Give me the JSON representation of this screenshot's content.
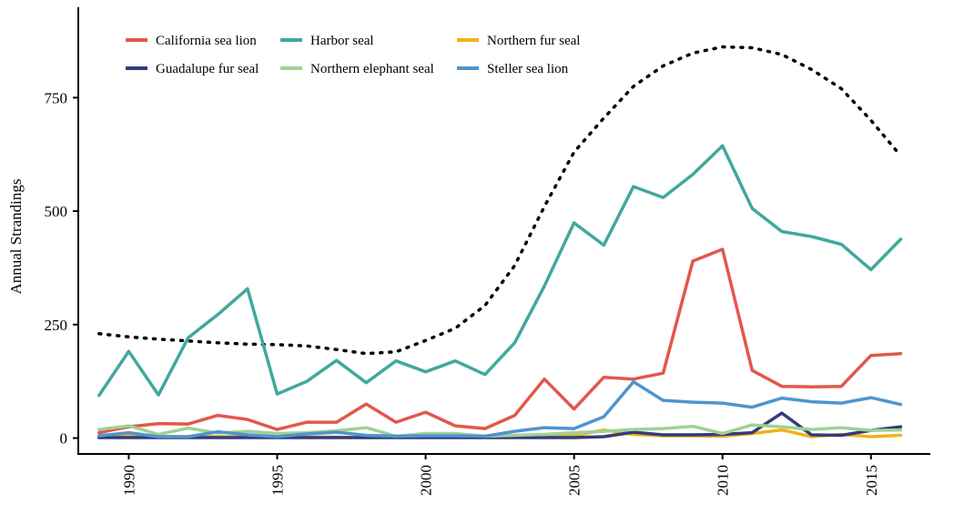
{
  "chart_data": {
    "type": "line",
    "title": "",
    "xlabel": "",
    "ylabel": "Annual Strandings",
    "xlim": [
      1988.3,
      2017.0
    ],
    "ylim": [
      -35,
      905
    ],
    "x_ticks": [
      1990,
      1995,
      2000,
      2005,
      2010,
      2015
    ],
    "y_ticks": [
      0,
      250,
      500,
      750
    ],
    "legend_position": "top",
    "grid": false,
    "x": [
      1989,
      1990,
      1991,
      1992,
      1993,
      1994,
      1995,
      1996,
      1997,
      1998,
      1999,
      2000,
      2001,
      2002,
      2003,
      2004,
      2005,
      2006,
      2007,
      2008,
      2009,
      2010,
      2011,
      2012,
      2013,
      2014,
      2015,
      2016
    ],
    "series": [
      {
        "name": "California sea lion",
        "color": "#e2584a",
        "values": [
          12,
          25,
          32,
          31,
          50,
          41,
          19,
          35,
          35,
          75,
          35,
          57,
          27,
          21,
          50,
          130,
          64,
          134,
          130,
          143,
          390,
          416,
          149,
          114,
          113,
          114,
          182,
          186
        ]
      },
      {
        "name": "Harbor seal",
        "color": "#41a89e",
        "values": [
          94,
          191,
          95,
          221,
          272,
          329,
          97,
          125,
          171,
          122,
          170,
          146,
          170,
          140,
          210,
          335,
          474,
          425,
          554,
          530,
          581,
          644,
          506,
          455,
          444,
          427,
          371,
          438
        ]
      },
      {
        "name": "Northern fur seal",
        "color": "#f2b218",
        "values": [
          2,
          6,
          4,
          3,
          3,
          3,
          2,
          2,
          2,
          1,
          2,
          3,
          2,
          2,
          3,
          3,
          5,
          18,
          8,
          5,
          5,
          4,
          10,
          18,
          3,
          8,
          3,
          6
        ]
      },
      {
        "name": "Guadalupe fur seal",
        "color": "#343b7c",
        "values": [
          1,
          1,
          1,
          1,
          1,
          1,
          1,
          1,
          1,
          1,
          1,
          1,
          1,
          1,
          1,
          1,
          1,
          3,
          13,
          7,
          7,
          8,
          12,
          55,
          7,
          6,
          17,
          25
        ]
      },
      {
        "name": "Northern elephant seal",
        "color": "#9fd196",
        "values": [
          19,
          27,
          8,
          22,
          11,
          15,
          10,
          12,
          16,
          23,
          4,
          10,
          10,
          4,
          6,
          8,
          12,
          15,
          19,
          21,
          26,
          10,
          29,
          25,
          19,
          23,
          17,
          18
        ]
      },
      {
        "name": "Steller sea lion",
        "color": "#4d95cf",
        "values": [
          5,
          12,
          3,
          3,
          14,
          7,
          3,
          9,
          13,
          6,
          4,
          5,
          5,
          4,
          15,
          23,
          21,
          47,
          124,
          83,
          79,
          77,
          68,
          88,
          80,
          77,
          89,
          74
        ]
      }
    ],
    "trend": {
      "style": "dotted",
      "color": "#000000",
      "values": [
        230,
        223,
        218,
        214,
        210,
        207,
        206,
        203,
        195,
        186,
        190,
        215,
        242,
        292,
        380,
        510,
        630,
        705,
        775,
        820,
        848,
        862,
        860,
        845,
        812,
        770,
        700,
        622
      ]
    }
  }
}
